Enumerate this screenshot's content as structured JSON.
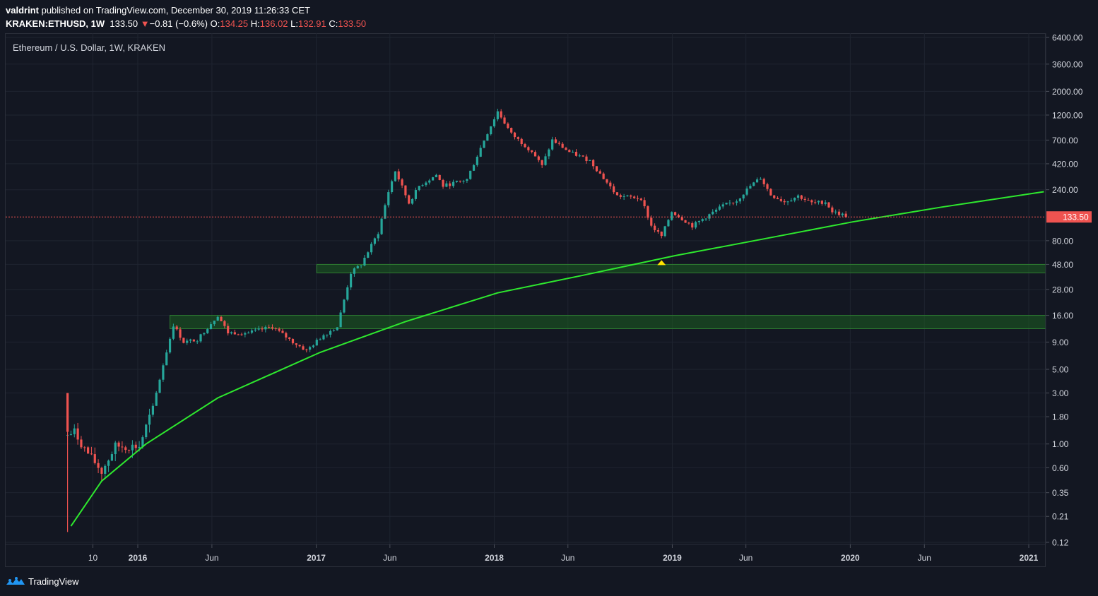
{
  "header": {
    "user": "valdrint",
    "published_text": "published on TradingView.com, December 30, 2019 11:26:33 CET",
    "symbol": "KRAKEN:ETHUSD, 1W",
    "last": "133.50",
    "change_arrow": "▼",
    "change": "−0.81 (−0.6%)",
    "o_label": "O:",
    "o_value": "134.25",
    "h_label": "H:",
    "h_value": "136.02",
    "l_label": "L:",
    "l_value": "132.91",
    "c_label": "C:",
    "c_value": "133.50"
  },
  "legend_title": "Ethereum / U.S. Dollar, 1W, KRAKEN",
  "footer": {
    "brand": "TradingView"
  },
  "colors": {
    "background": "#131722",
    "up": "#26a69a",
    "down": "#ef5350",
    "trendline": "#2ee82e",
    "zone_fill": "#1b5e20",
    "marker": "#ffe400"
  },
  "chart_data": {
    "type": "candlestick",
    "scale": "log",
    "ylim": [
      0.12,
      6400
    ],
    "y_ticks": [
      "6400.00",
      "3600.00",
      "2000.00",
      "1200.00",
      "700.00",
      "420.00",
      "240.00",
      "133.50",
      "80.00",
      "48.00",
      "28.00",
      "16.00",
      "9.00",
      "5.00",
      "3.00",
      "1.80",
      "1.00",
      "0.60",
      "0.35",
      "0.21",
      "0.12"
    ],
    "y_tick_values": [
      6400,
      3600,
      2000,
      1200,
      700,
      420,
      240,
      133.5,
      80,
      48,
      28,
      16,
      9,
      5,
      3,
      1.8,
      1,
      0.6,
      0.35,
      0.21,
      0.12
    ],
    "current_price": 133.5,
    "x_ticks": [
      {
        "label": "10",
        "date": "2015-10-01"
      },
      {
        "label": "2016",
        "date": "2016-01-01"
      },
      {
        "label": "Jun",
        "date": "2016-06-01"
      },
      {
        "label": "2017",
        "date": "2017-01-01"
      },
      {
        "label": "Jun",
        "date": "2017-06-01"
      },
      {
        "label": "2018",
        "date": "2018-01-01"
      },
      {
        "label": "Jun",
        "date": "2018-06-01"
      },
      {
        "label": "2019",
        "date": "2019-01-01"
      },
      {
        "label": "Jun",
        "date": "2019-06-01"
      },
      {
        "label": "2020",
        "date": "2020-01-01"
      },
      {
        "label": "Jun",
        "date": "2020-06-01"
      },
      {
        "label": "2021",
        "date": "2021-01-01"
      }
    ],
    "price_path": [
      [
        "2015-08-10",
        1.2
      ],
      [
        "2015-08-24",
        1.3
      ],
      [
        "2015-09-14",
        0.9
      ],
      [
        "2015-10-19",
        0.55
      ],
      [
        "2015-11-16",
        0.95
      ],
      [
        "2016-01-04",
        0.95
      ],
      [
        "2016-02-01",
        2.2
      ],
      [
        "2016-02-22",
        5.5
      ],
      [
        "2016-03-14",
        13
      ],
      [
        "2016-04-04",
        9
      ],
      [
        "2016-05-02",
        9.5
      ],
      [
        "2016-06-13",
        16
      ],
      [
        "2016-07-04",
        11
      ],
      [
        "2016-08-15",
        11
      ],
      [
        "2016-10-03",
        12.5
      ],
      [
        "2016-11-14",
        9
      ],
      [
        "2016-12-12",
        7.5
      ],
      [
        "2017-01-16",
        10.5
      ],
      [
        "2017-02-13",
        12.5
      ],
      [
        "2017-03-13",
        40
      ],
      [
        "2017-04-03",
        48
      ],
      [
        "2017-05-08",
        95
      ],
      [
        "2017-05-29",
        230
      ],
      [
        "2017-06-12",
        360
      ],
      [
        "2017-07-10",
        180
      ],
      [
        "2017-07-31",
        260
      ],
      [
        "2017-09-04",
        330
      ],
      [
        "2017-09-18",
        260
      ],
      [
        "2017-11-06",
        300
      ],
      [
        "2017-12-11",
        700
      ],
      [
        "2018-01-08",
        1300
      ],
      [
        "2018-02-05",
        800
      ],
      [
        "2018-03-19",
        550
      ],
      [
        "2018-04-09",
        400
      ],
      [
        "2018-04-30",
        700
      ],
      [
        "2018-06-04",
        540
      ],
      [
        "2018-07-16",
        450
      ],
      [
        "2018-08-20",
        280
      ],
      [
        "2018-09-10",
        210
      ],
      [
        "2018-10-29",
        200
      ],
      [
        "2018-11-19",
        110
      ],
      [
        "2018-12-10",
        88
      ],
      [
        "2018-12-31",
        150
      ],
      [
        "2019-02-11",
        110
      ],
      [
        "2019-03-18",
        140
      ],
      [
        "2019-04-15",
        170
      ],
      [
        "2019-05-13",
        190
      ],
      [
        "2019-06-10",
        260
      ],
      [
        "2019-07-01",
        310
      ],
      [
        "2019-07-22",
        215
      ],
      [
        "2019-08-19",
        185
      ],
      [
        "2019-09-16",
        210
      ],
      [
        "2019-10-14",
        180
      ],
      [
        "2019-11-11",
        185
      ],
      [
        "2019-11-25",
        150
      ],
      [
        "2019-12-30",
        133.5
      ]
    ],
    "trendline": [
      [
        "2015-08-17",
        0.17
      ],
      [
        "2015-10-19",
        0.45
      ],
      [
        "2016-01-18",
        1.0
      ],
      [
        "2016-06-13",
        2.7
      ],
      [
        "2017-01-09",
        7.2
      ],
      [
        "2017-07-03",
        14
      ],
      [
        "2018-01-08",
        26
      ],
      [
        "2018-07-02",
        38
      ],
      [
        "2019-01-07",
        58
      ],
      [
        "2019-07-01",
        82
      ],
      [
        "2020-01-06",
        120
      ],
      [
        "2020-07-06",
        165
      ],
      [
        "2021-02-01",
        230
      ]
    ],
    "zones": [
      {
        "from": "2017-01-02",
        "low": 40,
        "high": 48
      },
      {
        "from": "2016-03-07",
        "low": 12,
        "high": 16
      }
    ],
    "marker": {
      "date": "2018-12-10",
      "value": 48
    }
  }
}
